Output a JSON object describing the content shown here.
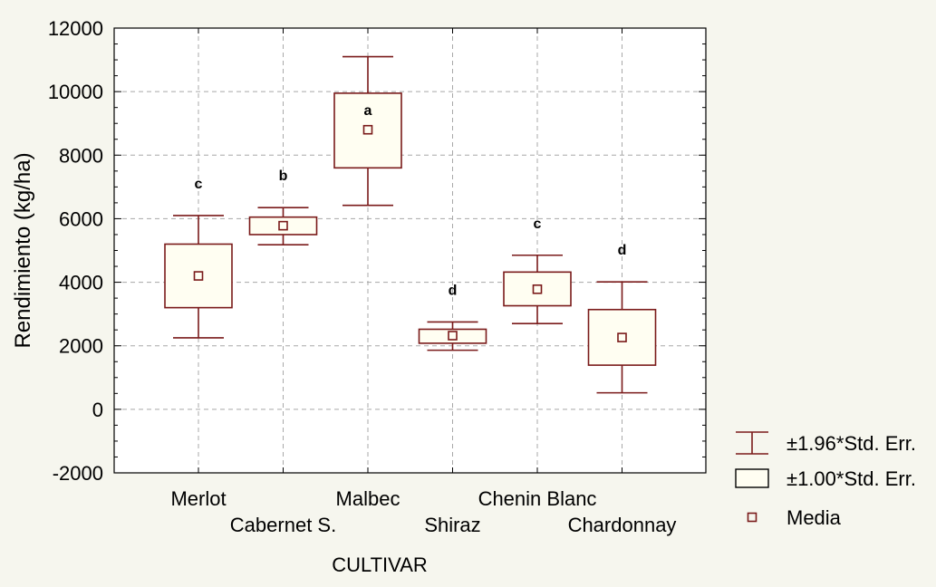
{
  "chart_data": {
    "type": "box",
    "xlabel": "CULTIVAR",
    "ylabel": "Rendimiento (kg/ha)",
    "ylim": [
      -2000,
      12000
    ],
    "yticks": [
      -2000,
      0,
      2000,
      4000,
      6000,
      8000,
      10000,
      12000
    ],
    "grid": true,
    "legend_position": "bottom-right",
    "categories": [
      "Merlot",
      "Cabernet S.",
      "Malbec",
      "Shiraz",
      "Chenin Blanc",
      "Chardonnay"
    ],
    "series": [
      {
        "category": "Merlot",
        "mean": 4200,
        "se_low": 3200,
        "se_high": 5200,
        "ci_low": 2250,
        "ci_high": 6100,
        "group": "c"
      },
      {
        "category": "Cabernet S.",
        "mean": 5780,
        "se_low": 5500,
        "se_high": 6050,
        "ci_low": 5180,
        "ci_high": 6350,
        "group": "b"
      },
      {
        "category": "Malbec",
        "mean": 8800,
        "se_low": 7600,
        "se_high": 9950,
        "ci_low": 6420,
        "ci_high": 11100,
        "group": "a"
      },
      {
        "category": "Shiraz",
        "mean": 2320,
        "se_low": 2080,
        "se_high": 2520,
        "ci_low": 1860,
        "ci_high": 2750,
        "group": "d"
      },
      {
        "category": "Chenin Blanc",
        "mean": 3780,
        "se_low": 3260,
        "se_high": 4320,
        "ci_low": 2700,
        "ci_high": 4850,
        "group": "c"
      },
      {
        "category": "Chardonnay",
        "mean": 2260,
        "se_low": 1390,
        "se_high": 3140,
        "ci_low": 520,
        "ci_high": 4010,
        "group": "d"
      }
    ],
    "legend": [
      {
        "label": "±1.96*Std. Err.",
        "symbol": "whisker"
      },
      {
        "label": "±1.00*Std. Err.",
        "symbol": "box"
      },
      {
        "label": "Media",
        "symbol": "square"
      }
    ],
    "colors": {
      "stroke": "#7a1a1a",
      "box_fill": "#fffef2",
      "plot_bg": "#ffffff",
      "page_bg": "#f6f6ee",
      "grid": "#a8a8a8",
      "axis": "#000000"
    }
  }
}
